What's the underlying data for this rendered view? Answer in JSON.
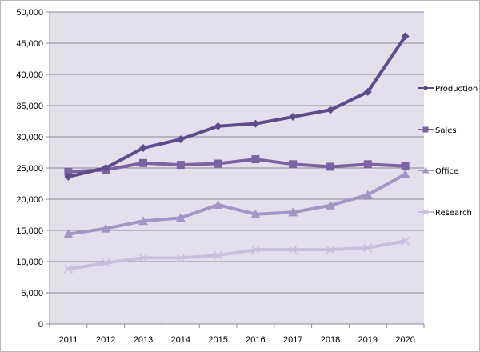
{
  "chart_data": {
    "type": "line",
    "title": "",
    "xlabel": "",
    "ylabel": "",
    "x": [
      "2011",
      "2012",
      "2013",
      "2014",
      "2015",
      "2016",
      "2017",
      "2018",
      "2019",
      "2020"
    ],
    "ylim": [
      0,
      50000
    ],
    "yticks": [
      "0",
      "5,000",
      "10,000",
      "15,000",
      "20,000",
      "25,000",
      "30,000",
      "35,000",
      "40,000",
      "45,000",
      "50,000"
    ],
    "grid": true,
    "plot_background": "#e4dfec",
    "legend_position": "right",
    "series": [
      {
        "name": "Production",
        "marker": "diamond",
        "color": "#5f4a8b",
        "values": [
          23600,
          25000,
          28200,
          29600,
          31700,
          32100,
          33200,
          34300,
          37200,
          46100
        ]
      },
      {
        "name": "Sales",
        "marker": "square",
        "color": "#7b63a3",
        "values": [
          24400,
          24700,
          25800,
          25500,
          25700,
          26400,
          25600,
          25200,
          25600,
          25300
        ]
      },
      {
        "name": "Office",
        "marker": "triangle",
        "color": "#a594c6",
        "values": [
          14400,
          15300,
          16500,
          17000,
          19100,
          17600,
          17900,
          19000,
          20700,
          24000
        ]
      },
      {
        "name": "Research",
        "marker": "x",
        "color": "#c8bedd",
        "values": [
          8800,
          9800,
          10600,
          10600,
          11000,
          11900,
          11900,
          11900,
          12200,
          13300
        ]
      }
    ]
  }
}
